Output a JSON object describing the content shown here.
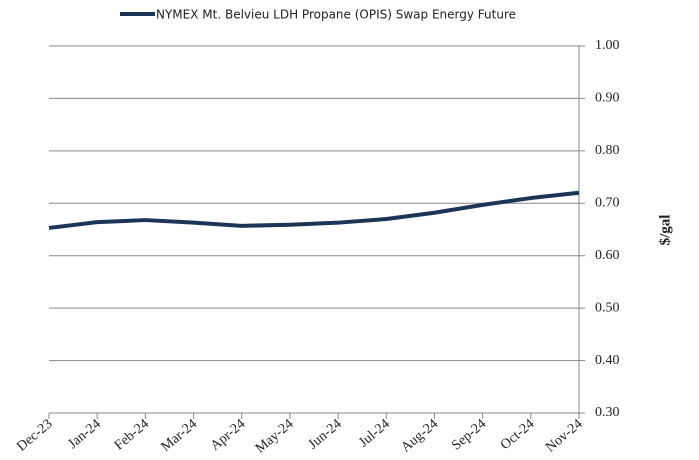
{
  "chart_data": {
    "type": "line",
    "categories": [
      "Dec-23",
      "Jan-24",
      "Feb-24",
      "Mar-24",
      "Apr-24",
      "May-24",
      "Jun-24",
      "Jul-24",
      "Aug-24",
      "Sep-24",
      "Oct-24",
      "Nov-24"
    ],
    "series": [
      {
        "name": "NYMEX Mt. Belvieu LDH Propane (OPIS) Swap Energy Future",
        "color": "#1c3557",
        "values": [
          0.653,
          0.664,
          0.668,
          0.663,
          0.657,
          0.659,
          0.663,
          0.67,
          0.682,
          0.697,
          0.71,
          0.72
        ]
      }
    ],
    "ylabel": "$/gal",
    "ylim": [
      0.3,
      1.0
    ],
    "yticks": [
      {
        "value": 0.3,
        "label": "0.30"
      },
      {
        "value": 0.4,
        "label": "0.40"
      },
      {
        "value": 0.5,
        "label": "0.50"
      },
      {
        "value": 0.6,
        "label": "0.60"
      },
      {
        "value": 0.7,
        "label": "0.70"
      },
      {
        "value": 0.8,
        "label": "0.80"
      },
      {
        "value": 0.9,
        "label": "0.90"
      },
      {
        "value": 1.0,
        "label": "1.00"
      }
    ],
    "grid": true,
    "legend": "top"
  }
}
